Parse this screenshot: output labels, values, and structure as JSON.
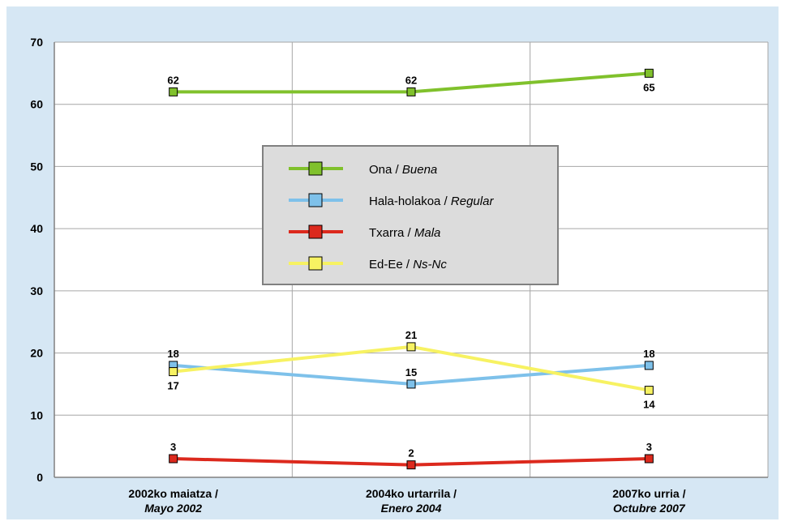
{
  "chart_data": {
    "type": "line",
    "title": "",
    "xlabel": "",
    "ylabel": "",
    "ylim": [
      0,
      70
    ],
    "yticks": [
      "0",
      "10",
      "20",
      "30",
      "40",
      "50",
      "60",
      "70"
    ],
    "categories": [
      {
        "line1": "2002ko maiatza /",
        "line2": "Mayo 2002"
      },
      {
        "line1": "2004ko urtarrila /",
        "line2": "Enero 2004"
      },
      {
        "line1": "2007ko urria /",
        "line2": "Octubre 2007"
      }
    ],
    "series": [
      {
        "key": "ona",
        "name_eu": "Ona",
        "name_es": "Buena",
        "color": "#80c12c",
        "values": [
          62,
          62,
          65
        ]
      },
      {
        "key": "hala",
        "name_eu": "Hala-holakoa",
        "name_es": "Regular",
        "color": "#7ec1ea",
        "values": [
          18,
          15,
          18
        ]
      },
      {
        "key": "txarra",
        "name_eu": "Txarra",
        "name_es": "Mala",
        "color": "#dc291d",
        "values": [
          3,
          2,
          3
        ]
      },
      {
        "key": "edee",
        "name_eu": "Ed-Ee",
        "name_es": "Ns-Nc",
        "color": "#f7f262",
        "values": [
          17,
          21,
          14
        ]
      }
    ],
    "grid": true,
    "legend_position": "center",
    "colors": {
      "background": "#d6e7f4",
      "plot_background": "#ffffff",
      "legend_background": "#dcdcdc",
      "grid": "#a6a6a6"
    }
  }
}
